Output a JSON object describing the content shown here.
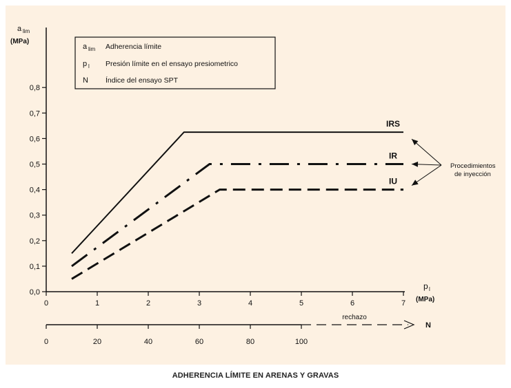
{
  "caption": "ADHERENCIA LÍMITE EN ARENAS Y GRAVAS",
  "colors": {
    "panel_background": "#fdf1e2",
    "ink": "#111111",
    "page_background": "#ffffff"
  },
  "chart_data": {
    "type": "line",
    "y_axis": {
      "label_main": "a",
      "label_sub": "lim",
      "label_unit": "(MPa)",
      "ticks": [
        "0,0",
        "0,1",
        "0,2",
        "0,3",
        "0,4",
        "0,5",
        "0,6",
        "0,7",
        "0,8"
      ],
      "tick_values": [
        0,
        0.1,
        0.2,
        0.3,
        0.4,
        0.5,
        0.6,
        0.7,
        0.8
      ],
      "ylim": [
        0,
        0.8
      ]
    },
    "x_axis": {
      "label_main": "p",
      "label_sub": "l",
      "label_unit": "(MPa)",
      "ticks": [
        "0",
        "1",
        "2",
        "3",
        "4",
        "5",
        "6",
        "7"
      ],
      "tick_values": [
        0,
        1,
        2,
        3,
        4,
        5,
        6,
        7
      ],
      "xlim": [
        0,
        7
      ]
    },
    "secondary_axis": {
      "ticks": [
        "0",
        "20",
        "40",
        "60",
        "80",
        "100"
      ],
      "tick_values": [
        0,
        20,
        40,
        60,
        80,
        100
      ],
      "rejection_label": "rechazo",
      "symbol": "N",
      "xlim": [
        0,
        140
      ]
    },
    "legend": {
      "placement": "top-left",
      "entries": [
        {
          "symbol_main": "a",
          "symbol_sub": "lim",
          "text": "Adherencia límite"
        },
        {
          "symbol_main": "p",
          "symbol_sub": "l",
          "text": "Presión límite en el ensayo presiometrico"
        },
        {
          "symbol_main": "N",
          "symbol_sub": "",
          "text": "Índice del ensayo SPT"
        }
      ]
    },
    "series": [
      {
        "name": "IRS",
        "style": "solid",
        "x": [
          0.5,
          2.7,
          7
        ],
        "y": [
          0.15,
          0.625,
          0.625
        ]
      },
      {
        "name": "IR",
        "style": "dash-dot",
        "x": [
          0.5,
          3.2,
          7
        ],
        "y": [
          0.1,
          0.5,
          0.5
        ]
      },
      {
        "name": "IU",
        "style": "dashed",
        "x": [
          0.5,
          3.4,
          7
        ],
        "y": [
          0.05,
          0.4,
          0.4
        ]
      }
    ],
    "annotation": {
      "lines": [
        "Procedimientos",
        "de inyección"
      ],
      "points_to": [
        "IRS",
        "IR",
        "IU"
      ]
    }
  }
}
